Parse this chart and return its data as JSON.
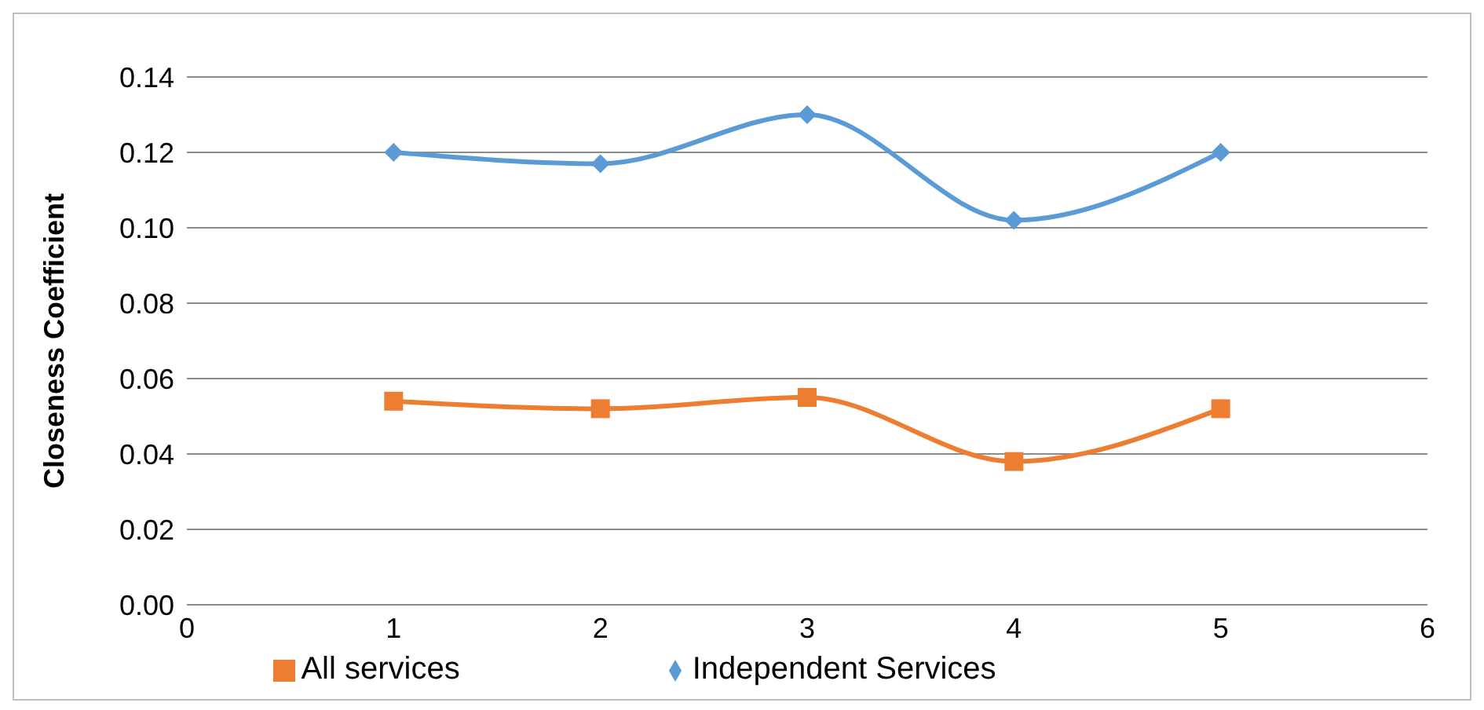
{
  "chart_data": {
    "type": "line",
    "ylabel": "Closeness Coefficient",
    "x": [
      1,
      2,
      3,
      4,
      5
    ],
    "xlim": [
      0,
      6
    ],
    "xticks": [
      0,
      1,
      2,
      3,
      4,
      5,
      6
    ],
    "ylim": [
      0,
      0.14
    ],
    "yticks": [
      {
        "value": 0,
        "label": "0.00"
      },
      {
        "value": 0.02,
        "label": "0.02"
      },
      {
        "value": 0.04,
        "label": "0.04"
      },
      {
        "value": 0.06,
        "label": "0.06"
      },
      {
        "value": 0.08,
        "label": "0.08"
      },
      {
        "value": 0.1,
        "label": "0.10"
      },
      {
        "value": 0.12,
        "label": "0.12"
      },
      {
        "value": 0.14,
        "label": "0.14"
      }
    ],
    "grid": "y",
    "legend": "bottom",
    "series": [
      {
        "name": "Independent Services",
        "color": "#5b9bd5",
        "marker": "diamond",
        "values": [
          0.12,
          0.117,
          0.13,
          0.102,
          0.12
        ]
      },
      {
        "name": "All services",
        "color": "#ed7d31",
        "marker": "square",
        "values": [
          0.054,
          0.052,
          0.055,
          0.038,
          0.052
        ]
      }
    ]
  }
}
